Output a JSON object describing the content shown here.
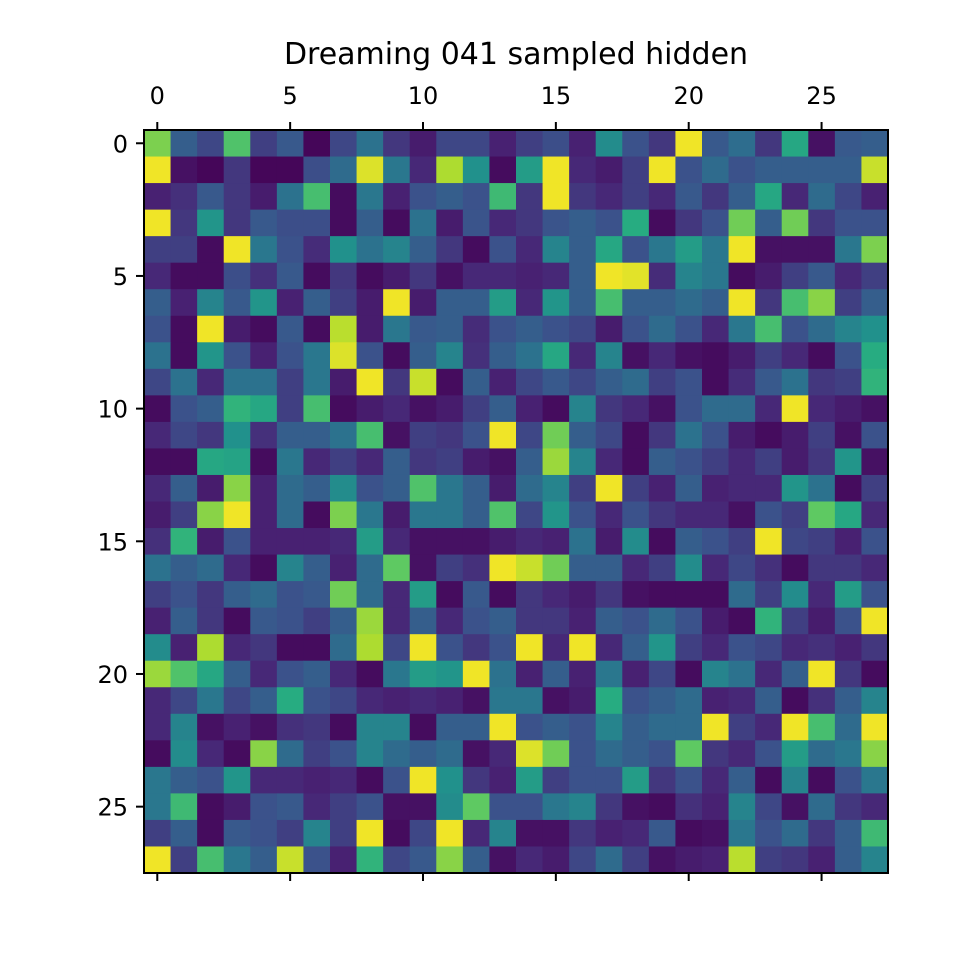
{
  "chart_data": {
    "type": "heatmap",
    "title": "Dreaming 041 sampled hidden",
    "xlabel": "",
    "ylabel": "",
    "colormap": "viridis",
    "vmin": 0,
    "vmax": 1,
    "x_range": [
      -0.5,
      27.5
    ],
    "y_range": [
      -0.5,
      27.5
    ],
    "y_inverted": true,
    "x_axis_position": "top",
    "x_ticks": [
      0,
      5,
      10,
      15,
      20,
      25
    ],
    "y_ticks": [
      0,
      5,
      10,
      15,
      20,
      25
    ],
    "x_tick_labels": [
      "0",
      "5",
      "10",
      "15",
      "20",
      "25"
    ],
    "y_tick_labels": [
      "0",
      "5",
      "10",
      "15",
      "20",
      "25"
    ],
    "grid": false,
    "legend": "none",
    "matrix": [
      [
        0.8,
        0.3,
        0.22,
        0.72,
        0.2,
        0.28,
        0.02,
        0.22,
        0.38,
        0.18,
        0.1,
        0.22,
        0.22,
        0.12,
        0.2,
        0.24,
        0.12,
        0.48,
        0.25,
        0.18,
        0.98,
        0.28,
        0.36,
        0.18,
        0.6,
        0.06,
        0.28,
        0.3
      ],
      [
        0.98,
        0.06,
        0.02,
        0.18,
        0.02,
        0.02,
        0.24,
        0.35,
        0.95,
        0.4,
        0.14,
        0.88,
        0.5,
        0.04,
        0.55,
        0.98,
        0.14,
        0.1,
        0.2,
        0.98,
        0.25,
        0.35,
        0.25,
        0.3,
        0.3,
        0.3,
        0.3,
        0.92
      ],
      [
        0.12,
        0.16,
        0.28,
        0.18,
        0.1,
        0.38,
        0.7,
        0.04,
        0.4,
        0.12,
        0.25,
        0.3,
        0.25,
        0.68,
        0.18,
        0.98,
        0.18,
        0.14,
        0.2,
        0.14,
        0.28,
        0.18,
        0.3,
        0.6,
        0.14,
        0.35,
        0.22,
        0.12
      ],
      [
        0.98,
        0.18,
        0.52,
        0.18,
        0.28,
        0.24,
        0.24,
        0.04,
        0.3,
        0.04,
        0.38,
        0.1,
        0.26,
        0.14,
        0.18,
        0.26,
        0.3,
        0.25,
        0.62,
        0.04,
        0.18,
        0.25,
        0.78,
        0.3,
        0.78,
        0.18,
        0.25,
        0.25
      ],
      [
        0.2,
        0.2,
        0.04,
        0.98,
        0.4,
        0.25,
        0.15,
        0.5,
        0.38,
        0.45,
        0.3,
        0.18,
        0.04,
        0.25,
        0.14,
        0.45,
        0.3,
        0.6,
        0.25,
        0.4,
        0.55,
        0.4,
        0.98,
        0.06,
        0.06,
        0.06,
        0.4,
        0.8
      ],
      [
        0.14,
        0.04,
        0.04,
        0.24,
        0.16,
        0.28,
        0.04,
        0.18,
        0.04,
        0.1,
        0.18,
        0.06,
        0.14,
        0.14,
        0.12,
        0.14,
        0.3,
        0.98,
        0.96,
        0.15,
        0.45,
        0.4,
        0.04,
        0.1,
        0.2,
        0.28,
        0.14,
        0.2
      ],
      [
        0.3,
        0.12,
        0.45,
        0.28,
        0.52,
        0.12,
        0.3,
        0.2,
        0.1,
        0.98,
        0.1,
        0.3,
        0.3,
        0.55,
        0.14,
        0.52,
        0.3,
        0.7,
        0.3,
        0.3,
        0.35,
        0.3,
        0.98,
        0.18,
        0.7,
        0.82,
        0.2,
        0.3
      ],
      [
        0.25,
        0.04,
        0.98,
        0.1,
        0.04,
        0.28,
        0.04,
        0.9,
        0.1,
        0.4,
        0.28,
        0.3,
        0.15,
        0.25,
        0.3,
        0.25,
        0.22,
        0.1,
        0.25,
        0.35,
        0.25,
        0.14,
        0.4,
        0.7,
        0.25,
        0.35,
        0.45,
        0.5
      ],
      [
        0.38,
        0.04,
        0.52,
        0.25,
        0.12,
        0.25,
        0.4,
        0.95,
        0.25,
        0.04,
        0.3,
        0.45,
        0.16,
        0.3,
        0.38,
        0.6,
        0.14,
        0.45,
        0.06,
        0.14,
        0.06,
        0.04,
        0.1,
        0.2,
        0.14,
        0.04,
        0.25,
        0.62
      ],
      [
        0.22,
        0.38,
        0.14,
        0.38,
        0.38,
        0.2,
        0.4,
        0.1,
        0.98,
        0.18,
        0.92,
        0.04,
        0.3,
        0.12,
        0.22,
        0.28,
        0.22,
        0.3,
        0.35,
        0.2,
        0.25,
        0.04,
        0.15,
        0.28,
        0.38,
        0.18,
        0.2,
        0.65
      ],
      [
        0.04,
        0.25,
        0.3,
        0.65,
        0.6,
        0.2,
        0.7,
        0.04,
        0.1,
        0.14,
        0.06,
        0.1,
        0.2,
        0.3,
        0.12,
        0.04,
        0.45,
        0.18,
        0.14,
        0.06,
        0.25,
        0.35,
        0.35,
        0.14,
        0.98,
        0.14,
        0.1,
        0.06
      ],
      [
        0.14,
        0.22,
        0.18,
        0.5,
        0.16,
        0.3,
        0.3,
        0.38,
        0.7,
        0.06,
        0.2,
        0.18,
        0.25,
        0.98,
        0.22,
        0.78,
        0.3,
        0.22,
        0.04,
        0.18,
        0.38,
        0.25,
        0.1,
        0.04,
        0.1,
        0.2,
        0.06,
        0.25
      ],
      [
        0.04,
        0.04,
        0.6,
        0.58,
        0.04,
        0.4,
        0.14,
        0.2,
        0.14,
        0.3,
        0.18,
        0.2,
        0.1,
        0.06,
        0.3,
        0.85,
        0.45,
        0.14,
        0.04,
        0.3,
        0.25,
        0.2,
        0.14,
        0.2,
        0.1,
        0.18,
        0.52,
        0.06
      ],
      [
        0.14,
        0.3,
        0.1,
        0.82,
        0.12,
        0.35,
        0.3,
        0.48,
        0.25,
        0.3,
        0.72,
        0.4,
        0.3,
        0.1,
        0.35,
        0.45,
        0.2,
        0.98,
        0.2,
        0.12,
        0.3,
        0.12,
        0.14,
        0.14,
        0.52,
        0.38,
        0.04,
        0.2
      ],
      [
        0.1,
        0.2,
        0.82,
        0.98,
        0.12,
        0.35,
        0.04,
        0.8,
        0.4,
        0.1,
        0.4,
        0.4,
        0.3,
        0.72,
        0.22,
        0.52,
        0.25,
        0.14,
        0.25,
        0.18,
        0.14,
        0.14,
        0.06,
        0.25,
        0.2,
        0.75,
        0.6,
        0.14
      ],
      [
        0.16,
        0.65,
        0.1,
        0.25,
        0.12,
        0.12,
        0.12,
        0.14,
        0.55,
        0.14,
        0.06,
        0.06,
        0.06,
        0.1,
        0.14,
        0.12,
        0.38,
        0.1,
        0.48,
        0.04,
        0.3,
        0.25,
        0.2,
        0.98,
        0.22,
        0.2,
        0.12,
        0.25
      ],
      [
        0.38,
        0.3,
        0.35,
        0.14,
        0.04,
        0.45,
        0.3,
        0.12,
        0.35,
        0.75,
        0.06,
        0.2,
        0.16,
        0.98,
        0.92,
        0.78,
        0.3,
        0.3,
        0.14,
        0.2,
        0.48,
        0.14,
        0.22,
        0.16,
        0.04,
        0.18,
        0.18,
        0.14
      ],
      [
        0.2,
        0.25,
        0.18,
        0.3,
        0.35,
        0.25,
        0.28,
        0.78,
        0.35,
        0.14,
        0.55,
        0.04,
        0.28,
        0.04,
        0.18,
        0.14,
        0.1,
        0.18,
        0.06,
        0.04,
        0.04,
        0.04,
        0.35,
        0.2,
        0.48,
        0.14,
        0.55,
        0.25
      ],
      [
        0.12,
        0.3,
        0.18,
        0.04,
        0.28,
        0.25,
        0.2,
        0.3,
        0.85,
        0.14,
        0.3,
        0.14,
        0.25,
        0.3,
        0.18,
        0.18,
        0.12,
        0.3,
        0.25,
        0.35,
        0.25,
        0.1,
        0.04,
        0.65,
        0.2,
        0.1,
        0.25,
        0.98
      ],
      [
        0.48,
        0.12,
        0.88,
        0.14,
        0.18,
        0.04,
        0.04,
        0.35,
        0.88,
        0.22,
        0.98,
        0.25,
        0.18,
        0.25,
        0.98,
        0.14,
        0.98,
        0.14,
        0.3,
        0.52,
        0.2,
        0.14,
        0.25,
        0.22,
        0.14,
        0.16,
        0.12,
        0.18
      ],
      [
        0.85,
        0.72,
        0.6,
        0.3,
        0.14,
        0.25,
        0.3,
        0.14,
        0.04,
        0.4,
        0.55,
        0.52,
        0.98,
        0.38,
        0.12,
        0.3,
        0.12,
        0.4,
        0.12,
        0.22,
        0.04,
        0.45,
        0.38,
        0.14,
        0.3,
        0.98,
        0.18,
        0.04
      ],
      [
        0.14,
        0.22,
        0.4,
        0.22,
        0.3,
        0.62,
        0.25,
        0.22,
        0.14,
        0.12,
        0.14,
        0.12,
        0.06,
        0.4,
        0.4,
        0.06,
        0.1,
        0.62,
        0.25,
        0.3,
        0.35,
        0.12,
        0.14,
        0.3,
        0.04,
        0.16,
        0.3,
        0.45
      ],
      [
        0.14,
        0.45,
        0.06,
        0.12,
        0.06,
        0.16,
        0.18,
        0.04,
        0.45,
        0.45,
        0.04,
        0.3,
        0.3,
        0.98,
        0.25,
        0.3,
        0.25,
        0.45,
        0.3,
        0.35,
        0.35,
        0.98,
        0.2,
        0.14,
        0.98,
        0.7,
        0.35,
        0.98
      ],
      [
        0.04,
        0.48,
        0.14,
        0.04,
        0.82,
        0.35,
        0.2,
        0.25,
        0.45,
        0.35,
        0.3,
        0.35,
        0.06,
        0.14,
        0.95,
        0.78,
        0.25,
        0.35,
        0.3,
        0.25,
        0.75,
        0.18,
        0.14,
        0.25,
        0.55,
        0.35,
        0.4,
        0.82
      ],
      [
        0.4,
        0.3,
        0.25,
        0.52,
        0.14,
        0.14,
        0.12,
        0.14,
        0.04,
        0.25,
        0.98,
        0.5,
        0.18,
        0.12,
        0.55,
        0.2,
        0.25,
        0.25,
        0.55,
        0.18,
        0.25,
        0.14,
        0.3,
        0.04,
        0.45,
        0.04,
        0.25,
        0.4
      ],
      [
        0.4,
        0.68,
        0.04,
        0.1,
        0.25,
        0.28,
        0.14,
        0.2,
        0.25,
        0.06,
        0.06,
        0.48,
        0.75,
        0.25,
        0.25,
        0.4,
        0.45,
        0.18,
        0.06,
        0.04,
        0.16,
        0.12,
        0.45,
        0.22,
        0.06,
        0.35,
        0.18,
        0.14
      ],
      [
        0.2,
        0.3,
        0.04,
        0.28,
        0.25,
        0.2,
        0.45,
        0.2,
        0.98,
        0.04,
        0.22,
        0.98,
        0.14,
        0.45,
        0.06,
        0.06,
        0.18,
        0.12,
        0.14,
        0.28,
        0.04,
        0.06,
        0.4,
        0.25,
        0.35,
        0.18,
        0.3,
        0.68
      ],
      [
        0.98,
        0.2,
        0.7,
        0.4,
        0.3,
        0.92,
        0.25,
        0.12,
        0.65,
        0.22,
        0.28,
        0.82,
        0.3,
        0.06,
        0.14,
        0.1,
        0.22,
        0.35,
        0.2,
        0.06,
        0.1,
        0.12,
        0.9,
        0.2,
        0.18,
        0.12,
        0.3,
        0.45
      ]
    ]
  }
}
